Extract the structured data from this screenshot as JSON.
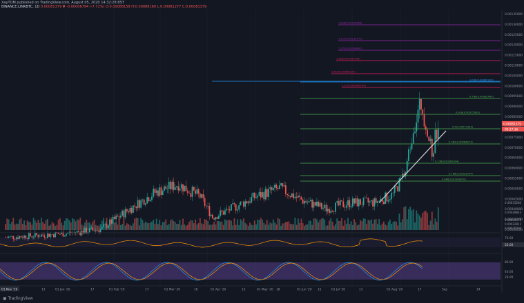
{
  "header": {
    "publisher_line": "XayTOM published on TradingView.com, August 05, 2020 14:32:28 BST",
    "symbol": "BINANCE:LINKBTC, 1D",
    "change": "0.00081379 ▼ -0.00006794 (-7.71%)",
    "ohlc": "O:0.00088159 H:0.00088169 L:0.00081277 C:0.00081379"
  },
  "price_badges": {
    "last_price": "0.00081379",
    "countdown": "09:27:36"
  },
  "fib_labels": {
    "f1618_top": "1.618(0.00125658)",
    "f1414_top": "1.414(0.00115470)",
    "f1272_top": "1.272(0.00108491)",
    "f1618": "1.618(0.00102145)",
    "f1414": "1.414(0.00095229)",
    "f1": "1.000(0.00087229)",
    "f1272": "1.272(0.00089734)",
    "f0786": "0.786(0.00082469)",
    "f0618": "0.618(0.00075963)",
    "f05": "0.5(0.00071454)",
    "f0382": "0.382(0.00066973)",
    "f0236": "0.236(0.00061494)",
    "f0786b": "0.786(0.00052994)",
    "f0886": "0.886(0.00049870)"
  },
  "price_axis": [
    "0.00135000",
    "0.00130000",
    "0.00125000",
    "0.00120000",
    "0.00115000",
    "0.00110000",
    "0.00105000",
    "0.00100000",
    "0.00095000",
    "0.00090000",
    "0.00085000",
    "0.00080000",
    "0.00075000",
    "0.00070000",
    "0.00065000",
    "0.00060000",
    "0.00055000",
    "0.00050000",
    "0.00045000",
    "0.00040000",
    "0.00035000",
    "0.00030000"
  ],
  "volume_axis": [
    "0.00033284",
    "0.00028843",
    "0.00024575",
    "0.00022811",
    "0.00020000"
  ],
  "rsi_axis": [
    "70.00",
    "50.00"
  ],
  "stoch_axis": [
    "80.00",
    "40.00",
    "20.00"
  ],
  "time_axis": {
    "first": "01 Nov '19",
    "ticks": [
      "13",
      "01 Jan '20",
      "17",
      "01 Feb '20",
      "17",
      "01 Mar '20",
      "16",
      "01 Apr '20",
      "13",
      "01 May '20",
      "18",
      "01 Jun '20",
      "15",
      "01 Jul '20",
      "13",
      "01 Aug '20",
      "17",
      "Sep",
      "14"
    ]
  },
  "footer": {
    "brand": "TradingView"
  },
  "colors": {
    "bg": "#131722",
    "up": "#26a69a",
    "down": "#ef5350",
    "fib_green": "#4caf50",
    "fib_red": "#e91e63",
    "fib_purple": "#9c27b0",
    "blue_line": "#2196f3",
    "rsi": "#ff9800"
  },
  "chart_data": {
    "type": "candlestick",
    "symbol": "LINKBTC",
    "timeframe": "1D",
    "x_range": [
      "2019-11-01",
      "2020-08-05"
    ],
    "ylim": [
      0.0003,
      0.00135
    ],
    "close_path": [
      [
        "2019-11-01",
        0.00026
      ],
      [
        "2019-11-20",
        0.00027
      ],
      [
        "2019-12-10",
        0.00028
      ],
      [
        "2020-01-01",
        0.0003
      ],
      [
        "2020-01-20",
        0.0004
      ],
      [
        "2020-02-05",
        0.00048
      ],
      [
        "2020-02-20",
        0.00052
      ],
      [
        "2020-03-05",
        0.00046
      ],
      [
        "2020-03-13",
        0.00036
      ],
      [
        "2020-03-25",
        0.0004
      ],
      [
        "2020-04-10",
        0.00046
      ],
      [
        "2020-04-25",
        0.0005
      ],
      [
        "2020-05-10",
        0.00044
      ],
      [
        "2020-05-25",
        0.0004
      ],
      [
        "2020-06-10",
        0.00043
      ],
      [
        "2020-06-25",
        0.00043
      ],
      [
        "2020-07-07",
        0.00047
      ],
      [
        "2020-07-15",
        0.00058
      ],
      [
        "2020-07-20",
        0.0008
      ],
      [
        "2020-07-25",
        0.00091
      ],
      [
        "2020-07-28",
        0.00082
      ],
      [
        "2020-08-01",
        0.00066
      ],
      [
        "2020-08-03",
        0.00075
      ],
      [
        "2020-08-05",
        0.00081379
      ]
    ],
    "trendline": [
      [
        "2020-06-28",
        0.00043
      ],
      [
        "2020-08-10",
        0.00078
      ]
    ],
    "horizontal_line": 0.00089734,
    "fib_levels": [
      1.618,
      1.414,
      1.272,
      1.618,
      1.414,
      1.272,
      1.0,
      0.786,
      0.618,
      0.5,
      0.382,
      0.236,
      0.786,
      0.886
    ]
  }
}
